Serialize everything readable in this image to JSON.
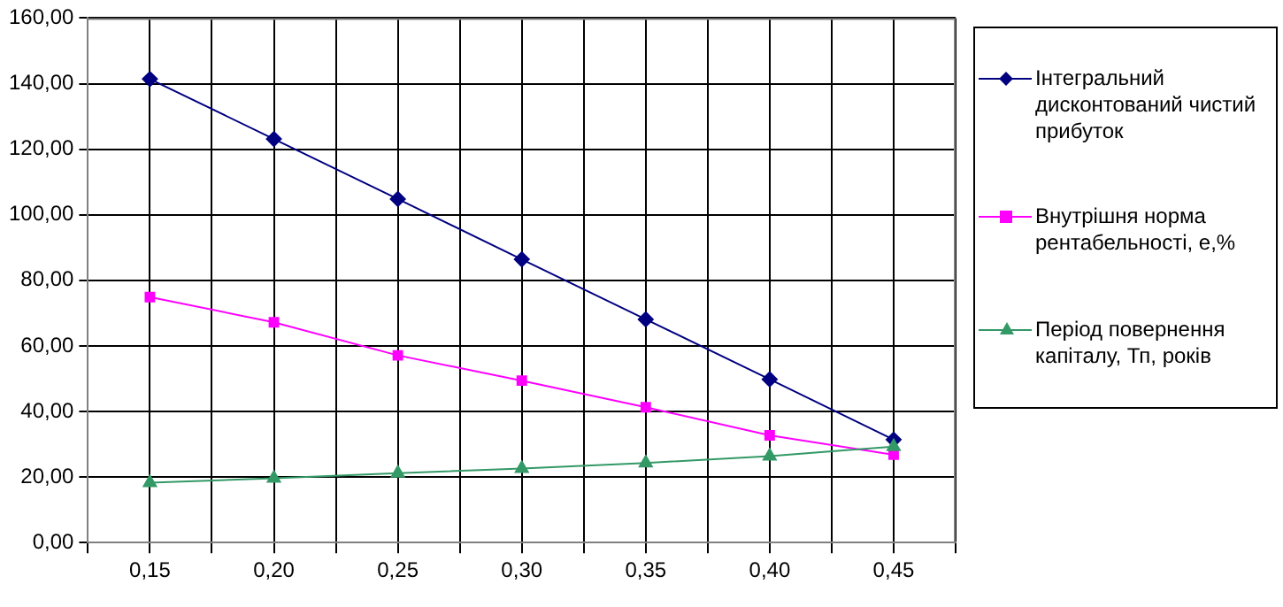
{
  "chart_data": {
    "type": "line",
    "x": [
      0.15,
      0.2,
      0.25,
      0.3,
      0.35,
      0.4,
      0.45
    ],
    "xlim": [
      0.125,
      0.475
    ],
    "xticks": [
      {
        "value": 0.125,
        "label": null
      },
      {
        "value": 0.15,
        "label": "0,15"
      },
      {
        "value": 0.175,
        "label": null
      },
      {
        "value": 0.2,
        "label": "0,20"
      },
      {
        "value": 0.225,
        "label": null
      },
      {
        "value": 0.25,
        "label": "0,25"
      },
      {
        "value": 0.275,
        "label": null
      },
      {
        "value": 0.3,
        "label": "0,30"
      },
      {
        "value": 0.325,
        "label": null
      },
      {
        "value": 0.35,
        "label": "0,35"
      },
      {
        "value": 0.375,
        "label": null
      },
      {
        "value": 0.4,
        "label": "0,40"
      },
      {
        "value": 0.425,
        "label": null
      },
      {
        "value": 0.45,
        "label": "0,45"
      },
      {
        "value": 0.475,
        "label": null
      }
    ],
    "ylim": [
      0,
      160
    ],
    "yticks": [
      {
        "value": 0,
        "label": "0,00"
      },
      {
        "value": 20,
        "label": "20,00"
      },
      {
        "value": 40,
        "label": "40,00"
      },
      {
        "value": 60,
        "label": "60,00"
      },
      {
        "value": 80,
        "label": "80,00"
      },
      {
        "value": 100,
        "label": "100,00"
      },
      {
        "value": 120,
        "label": "120,00"
      },
      {
        "value": 140,
        "label": "140,00"
      },
      {
        "value": 160,
        "label": "160,00"
      }
    ],
    "grid": true,
    "legend": "right",
    "line_style": "solid",
    "series": [
      {
        "name": "Інтегральний дисконтований чистий прибуток",
        "color": "#000080",
        "marker": "diamond",
        "values": [
          141.4,
          123.1,
          104.8,
          86.4,
          68.1,
          49.8,
          31.4
        ]
      },
      {
        "name": "Внутрішня норма рентабельності, е,%",
        "color": "#ff00ff",
        "marker": "square",
        "values": [
          74.9,
          67.2,
          57.1,
          49.4,
          41.3,
          32.7,
          26.8
        ]
      },
      {
        "name": "Період повернення капіталу, Тп, років",
        "color": "#339966",
        "marker": "triangle",
        "values": [
          18.3,
          19.6,
          21.2,
          22.6,
          24.3,
          26.4,
          29.3
        ]
      }
    ]
  }
}
